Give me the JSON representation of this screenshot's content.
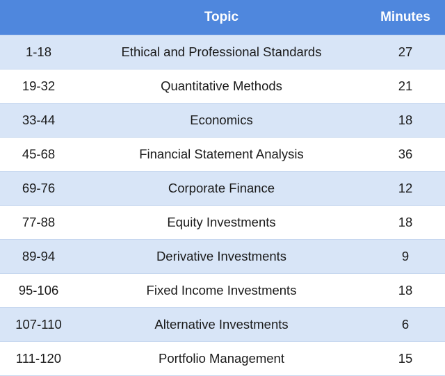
{
  "header": {
    "range_label": "",
    "topic_label": "Topic",
    "minutes_label": "Minutes"
  },
  "rows": [
    {
      "range": "1-18",
      "topic": "Ethical and Professional Standards",
      "minutes": "27"
    },
    {
      "range": "19-32",
      "topic": "Quantitative Methods",
      "minutes": "21"
    },
    {
      "range": "33-44",
      "topic": "Economics",
      "minutes": "18"
    },
    {
      "range": "45-68",
      "topic": "Financial Statement Analysis",
      "minutes": "36"
    },
    {
      "range": "69-76",
      "topic": "Corporate Finance",
      "minutes": "12"
    },
    {
      "range": "77-88",
      "topic": "Equity Investments",
      "minutes": "18"
    },
    {
      "range": "89-94",
      "topic": "Derivative Investments",
      "minutes": "9"
    },
    {
      "range": "95-106",
      "topic": "Fixed Income Investments",
      "minutes": "18"
    },
    {
      "range": "107-110",
      "topic": "Alternative Investments",
      "minutes": "6"
    },
    {
      "range": "111-120",
      "topic": "Portfolio Management",
      "minutes": "15"
    }
  ],
  "colors": {
    "header_bg": "#4f87dd",
    "header_text": "#ffffff",
    "shaded_row": "#d8e5f7",
    "plain_row": "#ffffff",
    "row_border": "#c6d7ef"
  }
}
